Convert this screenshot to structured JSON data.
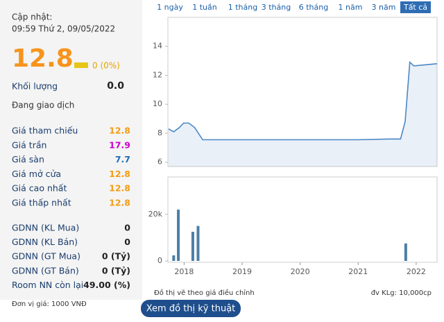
{
  "header": {
    "update_label": "Cập nhật:",
    "update_time": "09:59 Thứ 2, 09/05/2022"
  },
  "price": {
    "value": 12.8,
    "change": "0 (0%)"
  },
  "volume": {
    "label": "Khối lượng",
    "value": "0.0"
  },
  "status": "Đang giao dịch",
  "prices": [
    {
      "label": "Giá tham chiếu",
      "value": 12.8
    },
    {
      "label": "Giá trần",
      "value": 17.9
    },
    {
      "label": "Giá sàn",
      "value": 7.7
    },
    {
      "label": "Giá mở cửa",
      "value": 12.8
    },
    {
      "label": "Giá cao nhất",
      "value": 12.8
    },
    {
      "label": "Giá thấp nhất",
      "value": 12.8
    }
  ],
  "foreign": [
    {
      "label": "GDNN (KL Mua)",
      "value": 0
    },
    {
      "label": "GDNN (KL Bán)",
      "value": 0
    },
    {
      "label": "GDNN (GT Mua)",
      "value": "0 (Tỷ)"
    },
    {
      "label": "GDNN (GT Bán)",
      "value": "0 (Tỷ)"
    },
    {
      "label": "Room NN còn lại",
      "value": "49.00 (%)"
    }
  ],
  "unit_note": "Đơn vị giá: 1000 VNĐ",
  "ranges": [
    "1 ngày",
    "1 tuần",
    "1 tháng",
    "3 tháng",
    "6 tháng",
    "1 năm",
    "3 năm",
    "Tất cả"
  ],
  "active_range": 7,
  "chart_data": [
    {
      "type": "line",
      "color": "#4a86c5",
      "x": [
        2017.73,
        2017.82,
        2017.92,
        2017.99,
        2018.08,
        2018.18,
        2018.32,
        2019.0,
        2020.0,
        2021.0,
        2021.54,
        2021.73,
        2021.81,
        2021.89,
        2021.96,
        2022.36
      ],
      "values": [
        8.3,
        8.1,
        8.4,
        8.7,
        8.7,
        8.4,
        7.55,
        7.55,
        7.55,
        7.55,
        7.6,
        7.6,
        8.8,
        12.9,
        12.65,
        12.8
      ],
      "xlim": [
        2017.72,
        2022.36
      ],
      "ylim": [
        5.7,
        16
      ],
      "yticks": [
        6,
        8,
        10,
        12,
        14
      ]
    },
    {
      "type": "bar",
      "color": "#4a7fa8",
      "x": [
        2017.82,
        2017.9,
        2018.15,
        2018.24,
        2021.82
      ],
      "values": [
        2400,
        22000,
        12500,
        15000,
        7500
      ],
      "xlim": [
        2017.72,
        2022.36
      ],
      "ylim": [
        0,
        36000
      ],
      "yticks": [
        0,
        {
          "value": 20000,
          "label": "20k"
        }
      ],
      "xticks": [
        2018,
        2019,
        2020,
        2021,
        2022
      ]
    }
  ],
  "notes": {
    "adjusted": "Đồ thị vẽ theo giá điều chỉnh",
    "volume_unit": "đv KLg: 10,000cp"
  },
  "button": "Xem đồ thị kỹ thuật"
}
